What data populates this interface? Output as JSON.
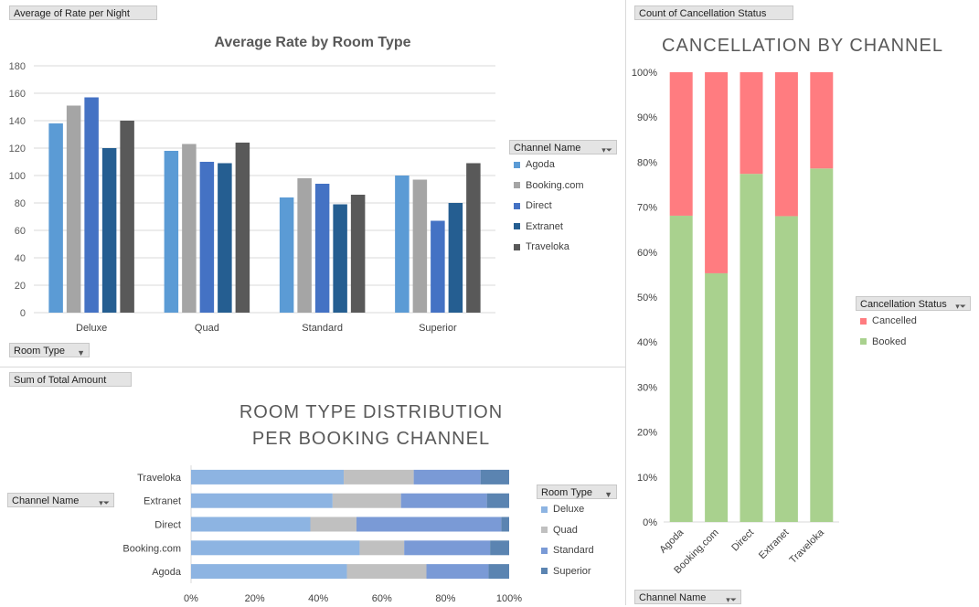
{
  "colors": {
    "agoda": "#5b9bd5",
    "booking": "#a5a5a5",
    "direct": "#4472c4",
    "extranet": "#255e91",
    "traveloka": "#595959",
    "deluxe": "#8db4e2",
    "quad": "#c0c0c0",
    "standard": "#7a9ad6",
    "superior": "#5b84b1",
    "cancelled": "#ff7c80",
    "booked": "#a9d18e"
  },
  "top_left": {
    "field_label": "Average of Rate per Night",
    "axis_filter_label": "Room Type",
    "legend_title": "Channel Name"
  },
  "bottom_left": {
    "field_label": "Sum of Total Amount",
    "axis_filter_label": "Channel Name",
    "legend_title": "Room Type",
    "title_line1": "ROOM TYPE DISTRIBUTION",
    "title_line2": "PER BOOKING CHANNEL"
  },
  "right": {
    "field_label": "Count of Cancellation Status",
    "axis_filter_label": "Channel Name",
    "legend_title": "Cancellation Status"
  },
  "chart_data": [
    {
      "id": "rate",
      "type": "bar",
      "title": "Average Rate by Room Type",
      "categories": [
        "Deluxe",
        "Quad",
        "Standard",
        "Superior"
      ],
      "series": [
        {
          "name": "Agoda",
          "color_key": "agoda",
          "values": [
            138,
            118,
            84,
            100
          ]
        },
        {
          "name": "Booking.com",
          "color_key": "booking",
          "values": [
            151,
            123,
            98,
            97
          ]
        },
        {
          "name": "Direct",
          "color_key": "direct",
          "values": [
            157,
            110,
            94,
            67
          ]
        },
        {
          "name": "Extranet",
          "color_key": "extranet",
          "values": [
            120,
            109,
            79,
            80
          ]
        },
        {
          "name": "Traveloka",
          "color_key": "traveloka",
          "values": [
            140,
            124,
            86,
            109
          ]
        }
      ],
      "ylim": [
        0,
        180
      ],
      "yticks": [
        "0",
        "20",
        "40",
        "60",
        "80",
        "100",
        "120",
        "140",
        "160",
        "180"
      ],
      "grid": true,
      "legend": "right"
    },
    {
      "id": "distribution",
      "type": "bar",
      "orientation": "horizontal",
      "stacked": "percent",
      "categories": [
        "Traveloka",
        "Extranet",
        "Direct",
        "Booking.com",
        "Agoda"
      ],
      "series": [
        {
          "name": "Deluxe",
          "color_key": "deluxe",
          "values": [
            48,
            44.5,
            37.5,
            53,
            49
          ]
        },
        {
          "name": "Quad",
          "color_key": "quad",
          "values": [
            22,
            21.5,
            14.5,
            14,
            25
          ]
        },
        {
          "name": "Standard",
          "color_key": "standard",
          "values": [
            21,
            27,
            45.5,
            27,
            19.5
          ]
        },
        {
          "name": "Superior",
          "color_key": "superior",
          "values": [
            9,
            7,
            2.5,
            6,
            6.5
          ]
        }
      ],
      "xticks": [
        "0%",
        "20%",
        "40%",
        "60%",
        "80%",
        "100%"
      ],
      "legend": "right"
    },
    {
      "id": "cancellation",
      "type": "bar",
      "stacked": "percent",
      "title": "CANCELLATION BY CHANNEL",
      "categories": [
        "Agoda",
        "Booking.com",
        "Direct",
        "Extranet",
        "Traveloka"
      ],
      "series": [
        {
          "name": "Cancelled",
          "color_key": "cancelled",
          "values": [
            31.9,
            44.7,
            22.6,
            32.0,
            21.4
          ]
        },
        {
          "name": "Booked",
          "color_key": "booked",
          "values": [
            68.1,
            55.3,
            77.4,
            68.0,
            78.6
          ]
        }
      ],
      "yticks": [
        "0%",
        "10%",
        "20%",
        "30%",
        "40%",
        "50%",
        "60%",
        "70%",
        "80%",
        "90%",
        "100%"
      ],
      "legend": "right"
    }
  ]
}
